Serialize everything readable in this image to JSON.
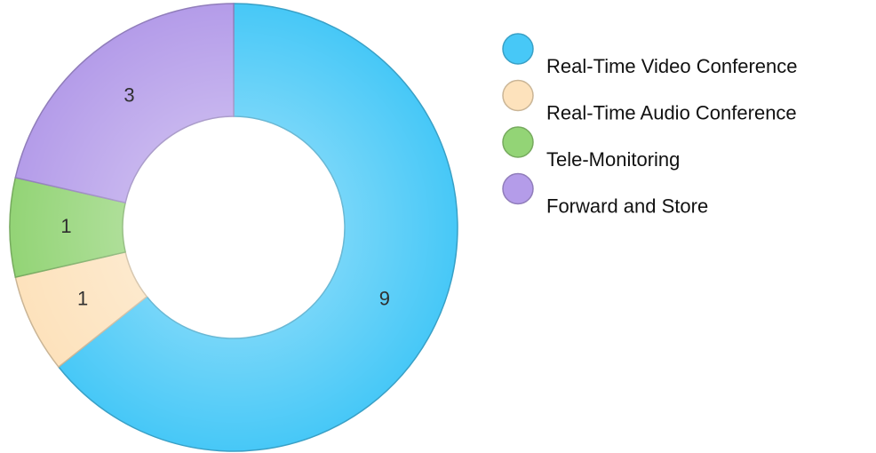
{
  "chart_data": {
    "type": "donut",
    "categories": [
      "Real-Time Video Conference",
      "Real-Time Audio Conference",
      "Tele-Monitoring",
      "Forward and Store"
    ],
    "values": [
      9,
      1,
      1,
      3
    ],
    "colors": [
      "#47c8f7",
      "#fde2bc",
      "#93d476",
      "#b49ce9"
    ],
    "legend": "right"
  }
}
